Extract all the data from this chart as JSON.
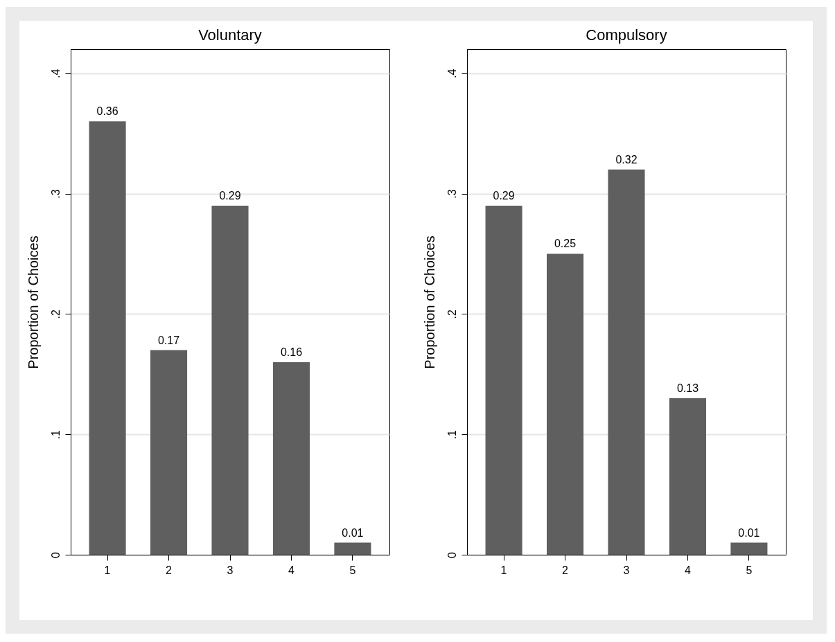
{
  "chart_data": [
    {
      "type": "bar",
      "title": "Voluntary",
      "ylabel": "Proportion of Choices",
      "categories": [
        "1",
        "2",
        "3",
        "4",
        "5"
      ],
      "values": [
        0.36,
        0.17,
        0.29,
        0.16,
        0.01
      ],
      "color": "#5f5f5f",
      "ylim": [
        0,
        0.42
      ],
      "yticks": [
        0,
        {
          "value": 0.1,
          "label": ".1"
        },
        {
          "value": 0.2,
          "label": ".2"
        },
        {
          "value": 0.3,
          "label": ".3"
        },
        {
          "value": 0.4,
          "label": ".4"
        }
      ],
      "grid": "y",
      "data_labels": true
    },
    {
      "type": "bar",
      "title": "Compulsory",
      "ylabel": "Proportion of Choices",
      "categories": [
        "1",
        "2",
        "3",
        "4",
        "5"
      ],
      "values": [
        0.29,
        0.25,
        0.32,
        0.13,
        0.01
      ],
      "color": "#5f5f5f",
      "ylim": [
        0,
        0.42
      ],
      "yticks": [
        0,
        {
          "value": 0.1,
          "label": ".1"
        },
        {
          "value": 0.2,
          "label": ".2"
        },
        {
          "value": 0.3,
          "label": ".3"
        },
        {
          "value": 0.4,
          "label": ".4"
        }
      ],
      "grid": "y",
      "data_labels": true
    }
  ]
}
